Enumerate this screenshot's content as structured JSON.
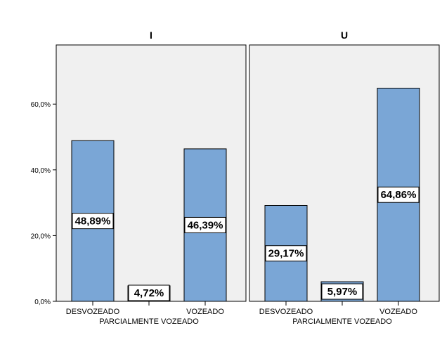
{
  "chart_data": {
    "type": "bar",
    "categories": [
      "DESVOZEADO",
      "PARCIALMENTE VOZEADO",
      "VOZEADO"
    ],
    "panels": [
      {
        "title": "I",
        "values": [
          48.89,
          4.72,
          46.39
        ],
        "labels": [
          "48,89%",
          "4,72%",
          "46,39%"
        ]
      },
      {
        "title": "U",
        "values": [
          29.17,
          5.97,
          64.86
        ],
        "labels": [
          "29,17%",
          "5,97%",
          "64,86%"
        ]
      }
    ],
    "yticks": [
      0,
      20,
      40,
      60
    ],
    "ytick_labels": [
      "0,0%",
      "20,0%",
      "40,0%",
      "60,0%"
    ],
    "ylim": [
      0,
      78
    ],
    "colors": {
      "bar": "#7aa6d6",
      "panel_background": "#f0f0f0"
    }
  }
}
